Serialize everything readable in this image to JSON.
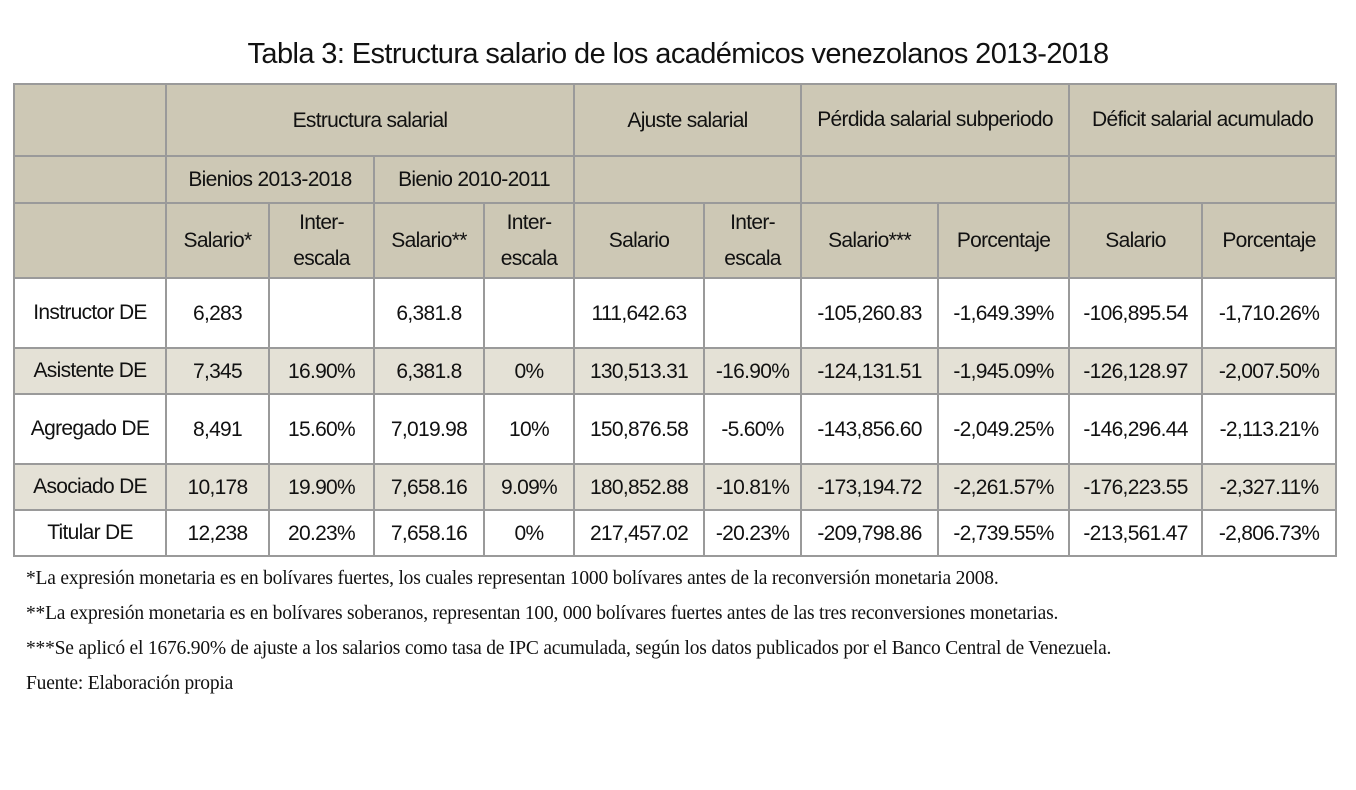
{
  "title": "Tabla 3: Estructura salario de los académicos venezolanos 2013-2018",
  "header": {
    "groups": [
      "Estructura salarial",
      "Ajuste salarial",
      "Pérdida salarial subperiodo",
      "Déficit salarial acumulado"
    ],
    "subgroups": [
      "Bienios 2013-2018",
      "Bienio 2010-2011"
    ],
    "columns": [
      "Salario*",
      "Inter-escala",
      "Salario**",
      "Inter-escala",
      "Salario",
      "Inter-escala",
      "Salario***",
      "Porcentaje",
      "Salario",
      "Porcentaje"
    ]
  },
  "rows": [
    {
      "label": "Instructor DE",
      "cells": [
        "6,283",
        "",
        "6,381.8",
        "",
        "111,642.63",
        "",
        "-105,260.83",
        "-1,649.39%",
        "-106,895.54",
        "-1,710.26%"
      ]
    },
    {
      "label": "Asistente DE",
      "cells": [
        "7,345",
        "16.90%",
        "6,381.8",
        "0%",
        "130,513.31",
        "-16.90%",
        "-124,131.51",
        "-1,945.09%",
        "-126,128.97",
        "-2,007.50%"
      ]
    },
    {
      "label": "Agregado DE",
      "cells": [
        "8,491",
        "15.60%",
        "7,019.98",
        "10%",
        "150,876.58",
        "-5.60%",
        "-143,856.60",
        "-2,049.25%",
        "-146,296.44",
        "-2,113.21%"
      ]
    },
    {
      "label": "Asociado DE",
      "cells": [
        "10,178",
        "19.90%",
        "7,658.16",
        "9.09%",
        "180,852.88",
        "-10.81%",
        "-173,194.72",
        "-2,261.57%",
        "-176,223.55",
        "-2,327.11%"
      ]
    },
    {
      "label": "Titular DE",
      "cells": [
        "12,238",
        "20.23%",
        "7,658.16",
        "0%",
        "217,457.02",
        "-20.23%",
        "-209,798.86",
        "-2,739.55%",
        "-213,561.47",
        "-2,806.73%"
      ]
    }
  ],
  "notes": [
    "*La expresión monetaria es en bolívares fuertes, los cuales representan 1000 bolívares antes de la reconversión monetaria 2008.",
    "**La expresión monetaria es en bolívares soberanos, representan 100, 000 bolívares fuertes antes de las tres reconversiones monetarias.",
    "***Se aplicó el 1676.90% de ajuste a los salarios como tasa de IPC acumulada, según los datos publicados por el Banco Central de Venezuela.",
    "Fuente: Elaboración propia"
  ],
  "colors": {
    "header_bg": "#cdc8b5",
    "alt_row_bg": "#e4e1d6",
    "border": "#9a9a9a"
  }
}
